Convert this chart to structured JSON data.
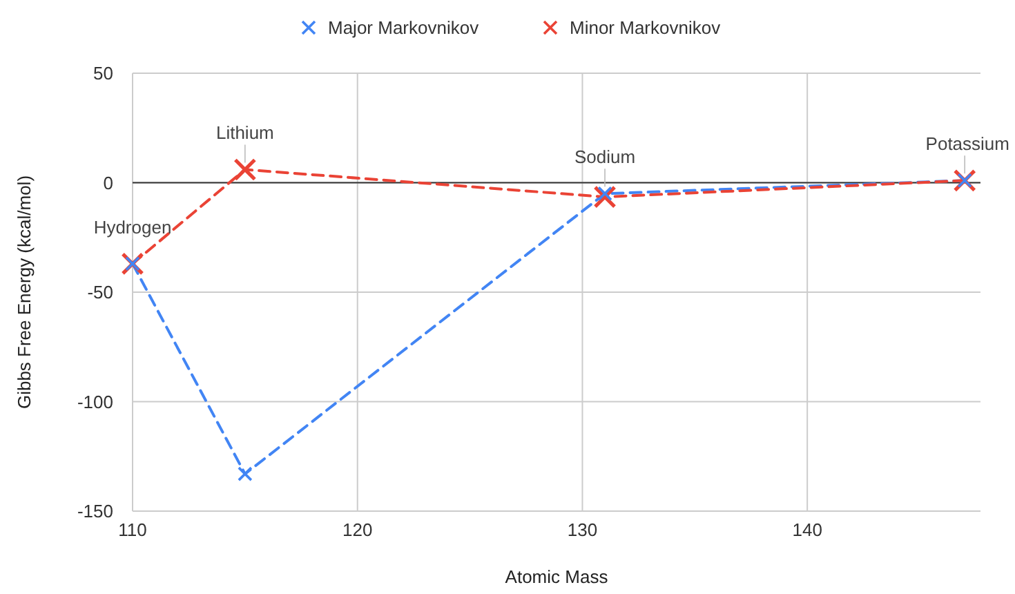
{
  "chart_data": {
    "type": "line",
    "xlabel": "Atomic Mass",
    "ylabel": "Gibbs Free Energy (kcal/mol)",
    "xlim": [
      110,
      147.7
    ],
    "xticks": [
      110,
      120,
      130,
      140
    ],
    "ylim": [
      -150,
      50
    ],
    "yticks": [
      -150,
      -100,
      -50,
      0,
      50
    ],
    "grid": true,
    "legend": "top",
    "marker": "cross",
    "line_style": "dashed",
    "series": [
      {
        "name": "Major Markovnikov",
        "color": "#4285f4",
        "x": [
          110,
          115,
          131,
          147
        ],
        "values": [
          -37,
          -133,
          -5,
          1
        ]
      },
      {
        "name": "Minor Markovnikov",
        "color": "#ea4335",
        "x": [
          110,
          115,
          131,
          147
        ],
        "values": [
          -37,
          6,
          -6.5,
          1
        ]
      }
    ],
    "annotations": [
      {
        "text": "Hydrogen",
        "x": 110,
        "y": -37
      },
      {
        "text": "Lithium",
        "x": 115,
        "y": 6
      },
      {
        "text": "Sodium",
        "x": 131,
        "y": -5
      },
      {
        "text": "Potassium",
        "x": 147,
        "y": 1
      }
    ]
  }
}
